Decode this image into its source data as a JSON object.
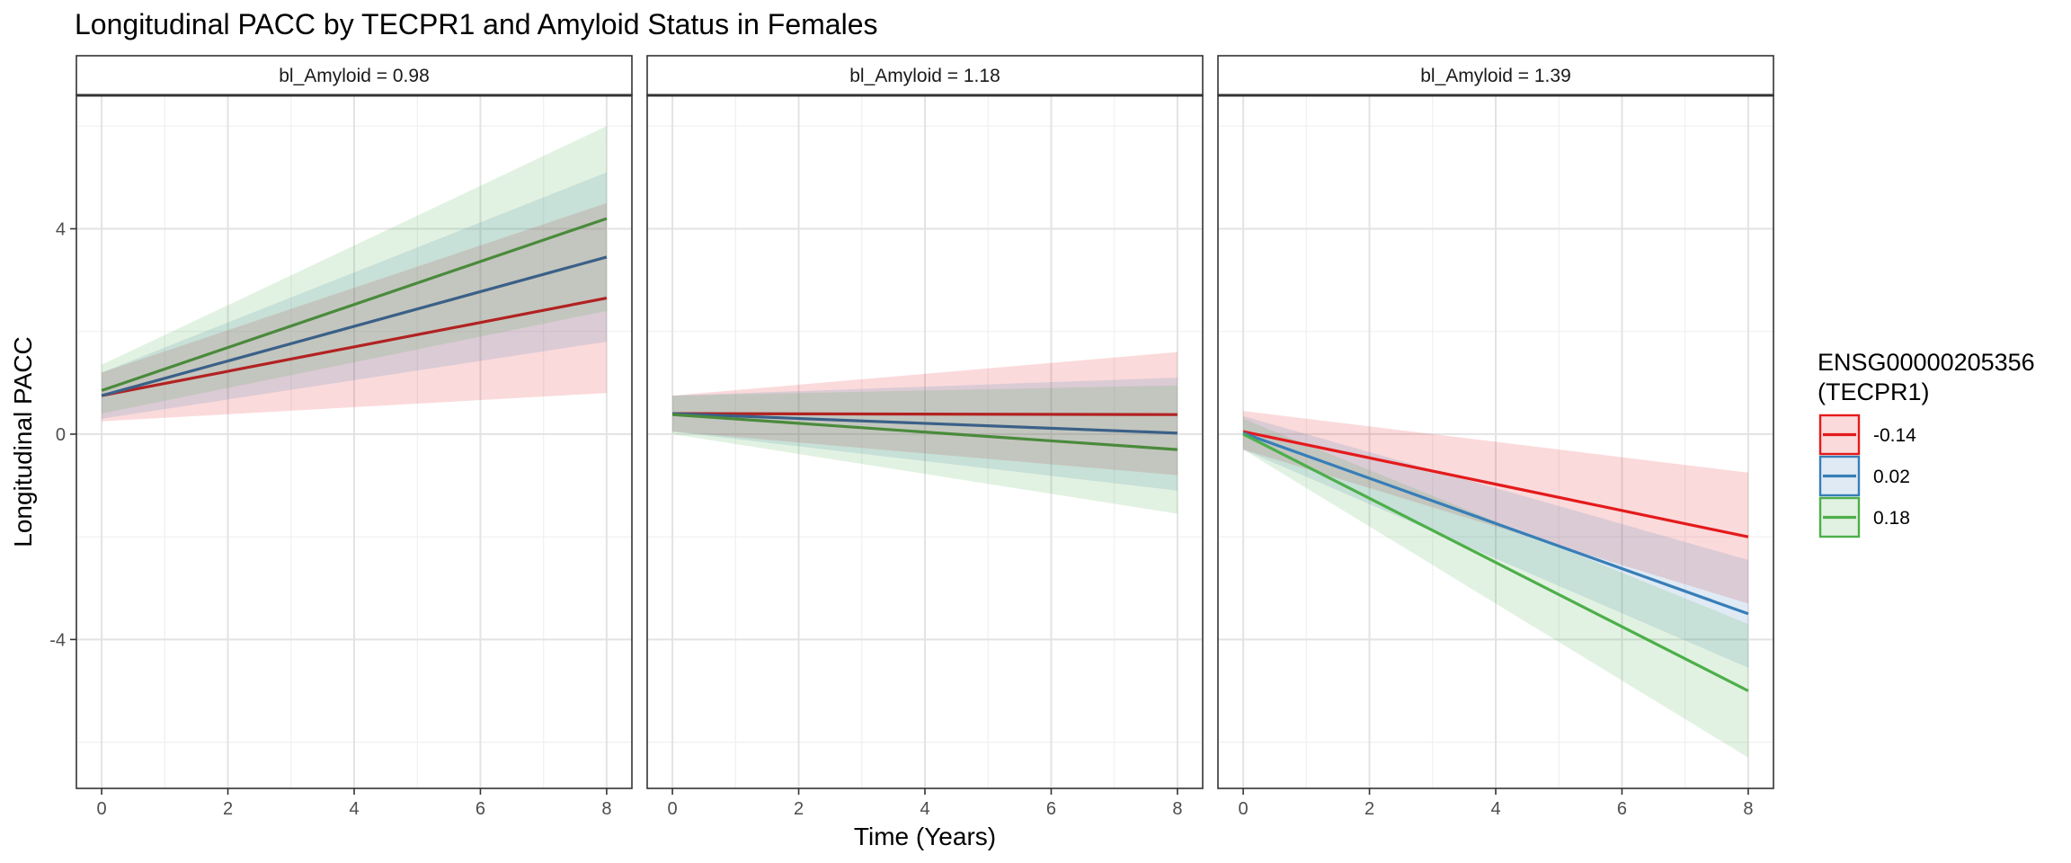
{
  "chart_data": {
    "type": "line",
    "title": "Longitudinal PACC by TECPR1 and Amyloid Status in Females",
    "xlabel": "Time (Years)",
    "ylabel": "Longitudinal PACC",
    "xlim": [
      -0.4,
      8.4
    ],
    "ylim": [
      -6.9,
      6.6
    ],
    "x_ticks": [
      0,
      2,
      4,
      6,
      8
    ],
    "x_tick_labels": [
      "0",
      "2",
      "4",
      "6",
      "8"
    ],
    "y_ticks": [
      -4,
      0,
      4
    ],
    "y_tick_labels": [
      "-4",
      "0",
      "4"
    ],
    "grid": true,
    "legend": {
      "title_line1": "ENSG00000205356",
      "title_line2": "(TECPR1)",
      "position": "right"
    },
    "series_levels": [
      {
        "label": "-0.14",
        "color": "#e41a1c"
      },
      {
        "label": "0.02",
        "color": "#377eb8"
      },
      {
        "label": "0.18",
        "color": "#4daf4a"
      }
    ],
    "panels": [
      {
        "strip": "bl_Amyloid = 0.98",
        "series": [
          {
            "level": "-0.14",
            "x": [
              0,
              8
            ],
            "y": [
              0.75,
              2.65
            ],
            "lower": [
              0.25,
              0.8
            ],
            "upper": [
              1.2,
              4.5
            ],
            "line_color": "#b22222"
          },
          {
            "level": "0.02",
            "x": [
              0,
              8
            ],
            "y": [
              0.75,
              3.45
            ],
            "lower": [
              0.3,
              1.8
            ],
            "upper": [
              1.2,
              5.1
            ],
            "line_color": "#3b6088"
          },
          {
            "level": "0.18",
            "x": [
              0,
              8
            ],
            "y": [
              0.85,
              4.2
            ],
            "lower": [
              0.4,
              2.4
            ],
            "upper": [
              1.35,
              6.0
            ],
            "line_color": "#4a8a3c"
          }
        ]
      },
      {
        "strip": "bl_Amyloid = 1.18",
        "series": [
          {
            "level": "-0.14",
            "x": [
              0,
              8
            ],
            "y": [
              0.4,
              0.38
            ],
            "lower": [
              0.05,
              -0.8
            ],
            "upper": [
              0.75,
              1.6
            ],
            "line_color": "#b22222"
          },
          {
            "level": "0.02",
            "x": [
              0,
              8
            ],
            "y": [
              0.4,
              0.02
            ],
            "lower": [
              0.05,
              -1.1
            ],
            "upper": [
              0.75,
              1.1
            ],
            "line_color": "#3b6088"
          },
          {
            "level": "0.18",
            "x": [
              0,
              8
            ],
            "y": [
              0.38,
              -0.3
            ],
            "lower": [
              0.0,
              -1.55
            ],
            "upper": [
              0.75,
              0.95
            ],
            "line_color": "#4a8a3c"
          }
        ]
      },
      {
        "strip": "bl_Amyloid = 1.39",
        "series": [
          {
            "level": "-0.14",
            "x": [
              0,
              8
            ],
            "y": [
              0.05,
              -2.0
            ],
            "lower": [
              -0.3,
              -3.3
            ],
            "upper": [
              0.45,
              -0.75
            ],
            "line_color": "#e41a1c"
          },
          {
            "level": "0.02",
            "x": [
              0,
              8
            ],
            "y": [
              0.02,
              -3.5
            ],
            "lower": [
              -0.3,
              -4.55
            ],
            "upper": [
              0.35,
              -2.45
            ],
            "line_color": "#377eb8"
          },
          {
            "level": "0.18",
            "x": [
              0,
              8
            ],
            "y": [
              0.0,
              -5.0
            ],
            "lower": [
              -0.3,
              -6.3
            ],
            "upper": [
              0.3,
              -3.7
            ],
            "line_color": "#4daf4a"
          }
        ]
      }
    ]
  }
}
